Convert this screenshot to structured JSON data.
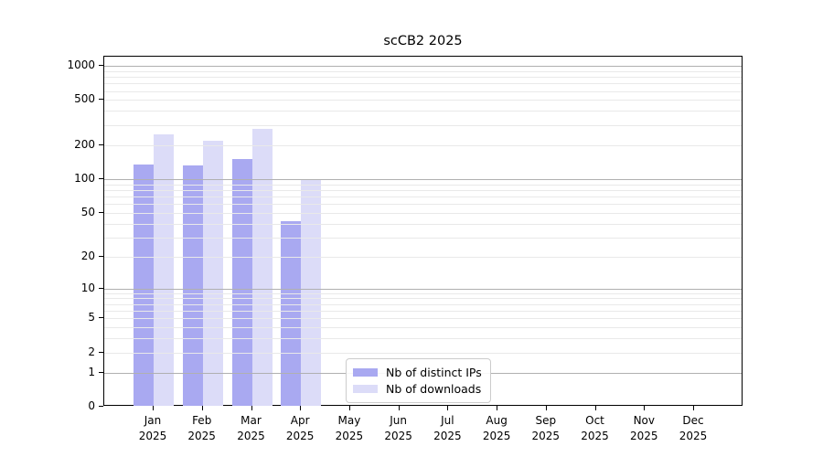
{
  "title": "scCB2 2025",
  "chart_data": {
    "type": "bar",
    "title": "scCB2 2025",
    "categories": [
      "Jan",
      "Feb",
      "Mar",
      "Apr",
      "May",
      "Jun",
      "Jul",
      "Aug",
      "Sep",
      "Oct",
      "Nov",
      "Dec"
    ],
    "category_year": "2025",
    "series": [
      {
        "name": "Nb of distinct IPs",
        "color": "#a9a9f1",
        "values": [
          135,
          132,
          151,
          42,
          0,
          0,
          0,
          0,
          0,
          0,
          0,
          0
        ]
      },
      {
        "name": "Nb of downloads",
        "color": "#dcdcf8",
        "values": [
          250,
          219,
          279,
          100,
          0,
          0,
          0,
          0,
          0,
          0,
          0,
          0
        ]
      }
    ],
    "xlabel": "",
    "ylabel": "",
    "y_scale": "log1p",
    "y_ticks": [
      0,
      1,
      2,
      5,
      10,
      20,
      50,
      100,
      200,
      500,
      1000
    ],
    "y_major_gridlines": [
      1,
      10,
      100,
      1000
    ],
    "ylim": [
      0,
      1200
    ],
    "grid": "on",
    "legend_position": "lower-center-left-of-middle",
    "legend_items": [
      {
        "label": "Nb of distinct IPs",
        "color": "#a9a9f1"
      },
      {
        "label": "Nb of downloads",
        "color": "#dcdcf8"
      }
    ]
  },
  "colors": {
    "bar_dark": "#a9a9f1",
    "bar_light": "#dcdcf8",
    "grid_major": "#b0b0b0",
    "grid_minor": "#e9e9e9",
    "spine": "#000000",
    "legend_border": "#cccccc",
    "background": "#ffffff"
  }
}
